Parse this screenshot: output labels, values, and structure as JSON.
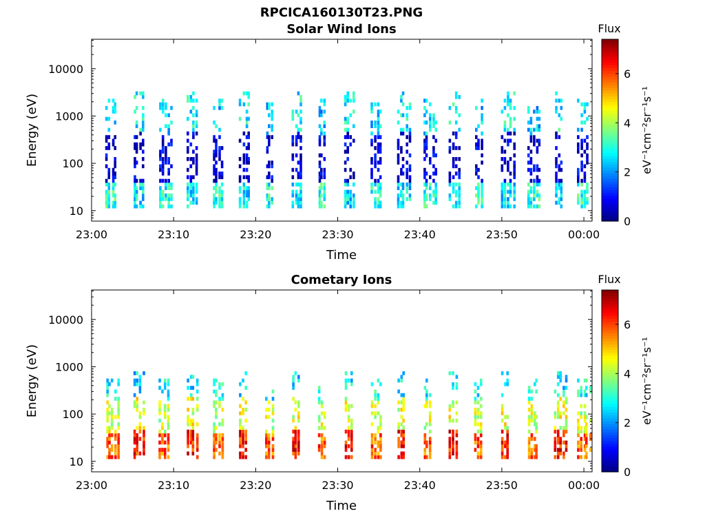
{
  "figure": {
    "title": "RPCICA160130T23.PNG"
  },
  "chart_data": [
    {
      "type": "heatmap",
      "title": "Solar Wind Ions",
      "xlabel": "Time",
      "ylabel": "Energy (eV)",
      "x_ticks": [
        "23:00",
        "23:10",
        "23:20",
        "23:30",
        "23:40",
        "23:50",
        "00:00"
      ],
      "x_range_minutes": [
        0,
        61
      ],
      "y_scale": "log",
      "y_range": [
        6,
        42000
      ],
      "y_ticks": [
        "10",
        "100",
        "1000",
        "10000"
      ],
      "colorbar": {
        "label": "Flux",
        "unit": "eV⁻¹cm⁻²sr⁻¹s⁻¹",
        "range": [
          0,
          7.4
        ],
        "ticks": [
          "0",
          "2",
          "4",
          "6"
        ],
        "colormap": "jet"
      },
      "scan_times_minutes": [
        2.3,
        5.7,
        8.8,
        12.2,
        15.3,
        18.6,
        21.8,
        25.0,
        28.2,
        31.4,
        34.6,
        37.8,
        41.0,
        44.2,
        47.3,
        50.5,
        53.7,
        57.0,
        59.8
      ],
      "scan_profiles": [
        {
          "low_band_flux": 3.0,
          "low_extent": [
            12,
            40
          ],
          "mid_flux": 0.6,
          "mid_extent": [
            40,
            400
          ],
          "high_flux": 2.4,
          "high_extent": [
            400,
            2200
          ]
        },
        {
          "low_band_flux": 2.6,
          "low_extent": [
            12,
            40
          ],
          "mid_flux": 0.5,
          "mid_extent": [
            40,
            500
          ],
          "high_flux": 2.8,
          "high_extent": [
            500,
            3500
          ]
        }
      ],
      "grid": false,
      "legend": "colorbar right"
    },
    {
      "type": "heatmap",
      "title": "Cometary Ions",
      "xlabel": "Time",
      "ylabel": "Energy (eV)",
      "x_ticks": [
        "23:00",
        "23:10",
        "23:20",
        "23:30",
        "23:40",
        "23:50",
        "00:00"
      ],
      "x_range_minutes": [
        0,
        61
      ],
      "y_scale": "log",
      "y_range": [
        6,
        42000
      ],
      "y_ticks": [
        "10",
        "100",
        "1000",
        "10000"
      ],
      "colorbar": {
        "label": "Flux",
        "unit": "eV⁻¹cm⁻²sr⁻¹s⁻¹",
        "range": [
          0,
          7.4
        ],
        "ticks": [
          "0",
          "2",
          "4",
          "6"
        ],
        "colormap": "jet"
      },
      "scan_times_minutes": [
        2.3,
        5.7,
        8.8,
        12.2,
        15.3,
        18.6,
        21.8,
        25.0,
        28.2,
        31.4,
        34.6,
        37.8,
        41.0,
        44.2,
        47.3,
        50.5,
        53.7,
        57.0,
        59.8
      ],
      "scan_profiles": [
        {
          "low_band_flux": 5.8,
          "low_extent": [
            12,
            40
          ],
          "mid_flux": 4.2,
          "mid_extent": [
            40,
            200
          ],
          "high_flux": 2.8,
          "high_extent": [
            200,
            600
          ]
        },
        {
          "low_band_flux": 6.3,
          "low_extent": [
            12,
            45
          ],
          "mid_flux": 4.4,
          "mid_extent": [
            45,
            250
          ],
          "high_flux": 2.6,
          "high_extent": [
            250,
            800
          ]
        }
      ],
      "grid": false,
      "legend": "colorbar right"
    }
  ]
}
